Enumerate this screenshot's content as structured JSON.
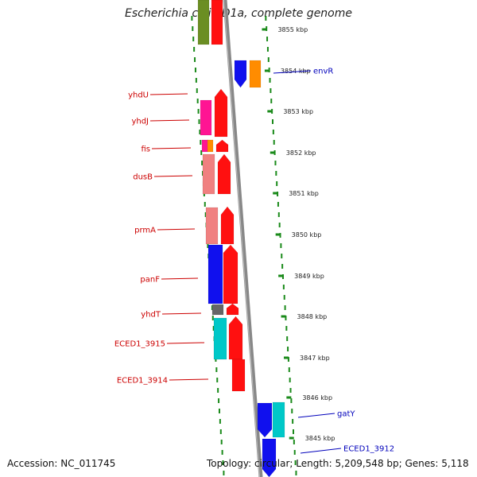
{
  "title": "Escherichia coli ED1a, complete genome",
  "accession": "Accession: NC_011745",
  "topology": "Topology: circular; Length: 5,209,548 bp; Genes: 5,118",
  "colors": {
    "backbone": "#888888",
    "ticks": "#1a8a1a",
    "label_forward": "#cc0000",
    "label_reverse": "#0000bb"
  },
  "kbp_labels": [
    "3855 kbp",
    "3854 kbp",
    "3853 kbp",
    "3852 kbp",
    "3851 kbp",
    "3850 kbp",
    "3849 kbp",
    "3848 kbp",
    "3847 kbp",
    "3846 kbp",
    "3845 kbp"
  ],
  "gene_labels_left": [
    "yhdU",
    "yhdJ",
    "fis",
    "dusB",
    "prmA",
    "panF",
    "yhdT",
    "ECED1_3915",
    "ECED1_3914"
  ],
  "gene_labels_right": [
    "envR",
    "gatY",
    "ECED1_3912"
  ]
}
